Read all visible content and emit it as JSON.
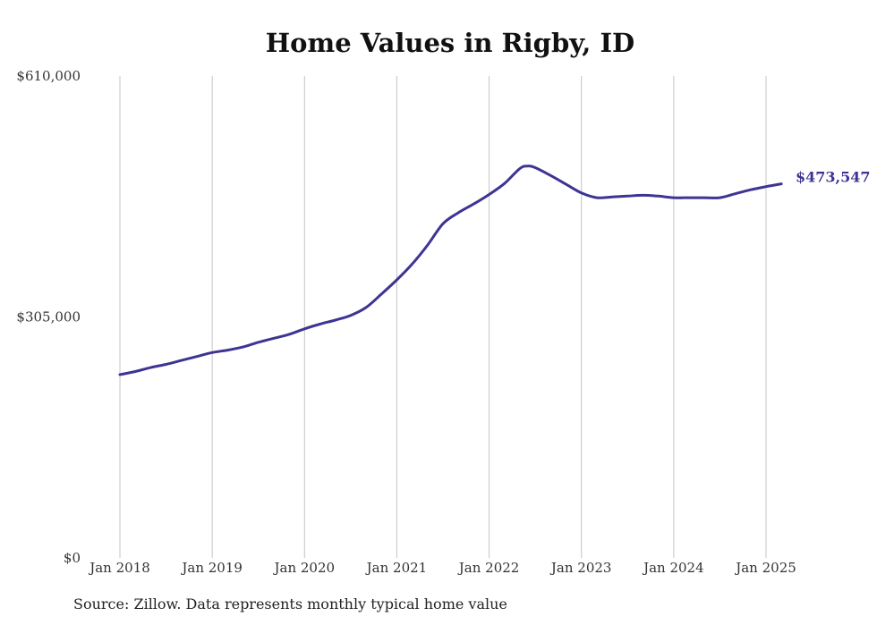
{
  "chart_data": {
    "type": "line",
    "title": "Home Values in Rigby, ID",
    "xlabel": "",
    "ylabel": "",
    "ylim": [
      0,
      610000
    ],
    "y_ticks": [
      "$0",
      "$305,000",
      "$610,000"
    ],
    "x_ticks": [
      {
        "label": "Jan 2018",
        "x": "2018-01"
      },
      {
        "label": "Jan 2019",
        "x": "2019-01"
      },
      {
        "label": "Jan 2020",
        "x": "2020-01"
      },
      {
        "label": "Jan 2021",
        "x": "2021-01"
      },
      {
        "label": "Jan 2022",
        "x": "2022-01"
      },
      {
        "label": "Jan 2023",
        "x": "2023-01"
      },
      {
        "label": "Jan 2024",
        "x": "2024-01"
      },
      {
        "label": "Jan 2025",
        "x": "2025-01"
      }
    ],
    "grid": "vertical",
    "line_color": "#3d3494",
    "end_label": "$473,547",
    "series": [
      {
        "x": [
          "2018-01",
          "2018-03",
          "2018-05",
          "2018-07",
          "2018-09",
          "2018-11",
          "2019-01",
          "2019-03",
          "2019-05",
          "2019-07",
          "2019-09",
          "2019-11",
          "2020-01",
          "2020-03",
          "2020-05",
          "2020-07",
          "2020-09",
          "2020-11",
          "2021-01",
          "2021-03",
          "2021-05",
          "2021-07",
          "2021-09",
          "2021-11",
          "2022-01",
          "2022-03",
          "2022-05",
          "2022-06",
          "2022-07",
          "2022-09",
          "2022-11",
          "2023-01",
          "2023-03",
          "2023-05",
          "2023-07",
          "2023-09",
          "2023-11",
          "2024-01",
          "2024-03",
          "2024-05",
          "2024-07",
          "2024-09",
          "2024-11",
          "2025-01",
          "2025-03"
        ],
        "values": [
          232000,
          236000,
          241000,
          245000,
          250000,
          255000,
          260000,
          263000,
          267000,
          273000,
          278000,
          283000,
          290000,
          296000,
          301000,
          307000,
          317000,
          334000,
          352000,
          372000,
          396000,
          423000,
          437000,
          448000,
          460000,
          474000,
          493000,
          496000,
          494000,
          484000,
          473000,
          462000,
          456000,
          457000,
          458000,
          459000,
          458000,
          456000,
          456000,
          456000,
          456000,
          461000,
          466000,
          470000,
          473547
        ]
      }
    ]
  },
  "footer": {
    "source": "Source: Zillow. Data represents monthly typical home value"
  }
}
